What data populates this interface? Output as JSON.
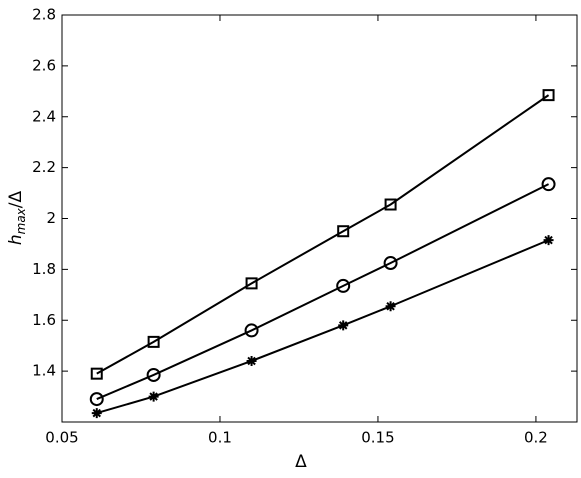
{
  "chart_data": {
    "type": "line",
    "xlabel": "Δ",
    "ylabel": {
      "base": "h",
      "sub": "max",
      "rest": "/Δ"
    },
    "x": [
      0.061,
      0.079,
      0.11,
      0.139,
      0.154,
      0.204
    ],
    "series": [
      {
        "marker": "square",
        "color": "#000000",
        "values": [
          1.39,
          1.515,
          1.745,
          1.95,
          2.055,
          2.485
        ]
      },
      {
        "marker": "circle",
        "color": "#000000",
        "values": [
          1.29,
          1.385,
          1.56,
          1.735,
          1.825,
          2.135
        ]
      },
      {
        "marker": "star",
        "color": "#000000",
        "values": [
          1.235,
          1.3,
          1.44,
          1.58,
          1.655,
          1.915
        ]
      }
    ],
    "xlim": [
      0.05,
      0.213
    ],
    "ylim": [
      1.2,
      2.8
    ],
    "xticks": [
      0.05,
      0.1,
      0.15,
      0.2
    ],
    "yticks": [
      1.4,
      1.6,
      1.8,
      2,
      2.2,
      2.4,
      2.6,
      2.8
    ],
    "grid": false
  }
}
